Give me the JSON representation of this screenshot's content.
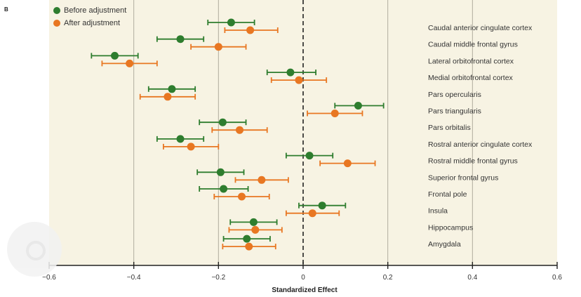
{
  "panel_label": "B",
  "colors": {
    "before": "#2e7d2e",
    "after": "#e87722",
    "background": "#f7f3e3",
    "grid": "#b0ad9e"
  },
  "chart_data": {
    "type": "scatter",
    "title": "",
    "xlabel": "Standardized Effect",
    "ylabel": "",
    "xlim": [
      -0.6,
      0.6
    ],
    "xticks": [
      -0.6,
      -0.4,
      -0.2,
      0,
      0.2,
      0.4,
      0.6
    ],
    "xtick_labels": [
      "−0.6",
      "−0.4",
      "−0.2",
      "0",
      "0.2",
      "0.4",
      "0.6"
    ],
    "grid": "vertical",
    "reference_line": 0,
    "legend_position": "top-left",
    "categories": [
      "Caudal anterior cingulate cortex",
      "Caudal middle frontal gyrus",
      "Lateral orbitofrontal cortex",
      "Medial orbitofrontal cortex",
      "Pars opercularis",
      "Pars triangularis",
      "Pars orbitalis",
      "Rostral anterior cingulate cortex",
      "Rostral middle frontal gyrus",
      "Superior frontal gyrus",
      "Frontal pole",
      "Insula",
      "Hippocampus",
      "Amygdala"
    ],
    "series": [
      {
        "name": "Before adjustment",
        "color": "#2e7d2e",
        "estimates": [
          -0.17,
          -0.29,
          -0.445,
          -0.03,
          -0.31,
          0.13,
          -0.19,
          -0.29,
          0.015,
          -0.195,
          -0.188,
          0.045,
          -0.117,
          -0.133
        ],
        "ci_low": [
          -0.225,
          -0.345,
          -0.5,
          -0.085,
          -0.365,
          0.075,
          -0.245,
          -0.345,
          -0.04,
          -0.25,
          -0.245,
          -0.01,
          -0.172,
          -0.188
        ],
        "ci_high": [
          -0.115,
          -0.235,
          -0.39,
          0.03,
          -0.255,
          0.19,
          -0.135,
          -0.235,
          0.07,
          -0.14,
          -0.13,
          0.1,
          -0.062,
          -0.078
        ]
      },
      {
        "name": "After adjustment",
        "color": "#e87722",
        "estimates": [
          -0.125,
          -0.2,
          -0.41,
          -0.01,
          -0.32,
          0.075,
          -0.15,
          -0.265,
          0.105,
          -0.098,
          -0.145,
          0.022,
          -0.113,
          -0.128
        ],
        "ci_low": [
          -0.185,
          -0.265,
          -0.475,
          -0.075,
          -0.385,
          0.01,
          -0.215,
          -0.33,
          0.04,
          -0.16,
          -0.21,
          -0.04,
          -0.175,
          -0.19
        ],
        "ci_high": [
          -0.06,
          -0.135,
          -0.345,
          0.055,
          -0.255,
          0.14,
          -0.085,
          -0.2,
          0.17,
          -0.035,
          -0.08,
          0.085,
          -0.05,
          -0.065
        ]
      }
    ]
  }
}
